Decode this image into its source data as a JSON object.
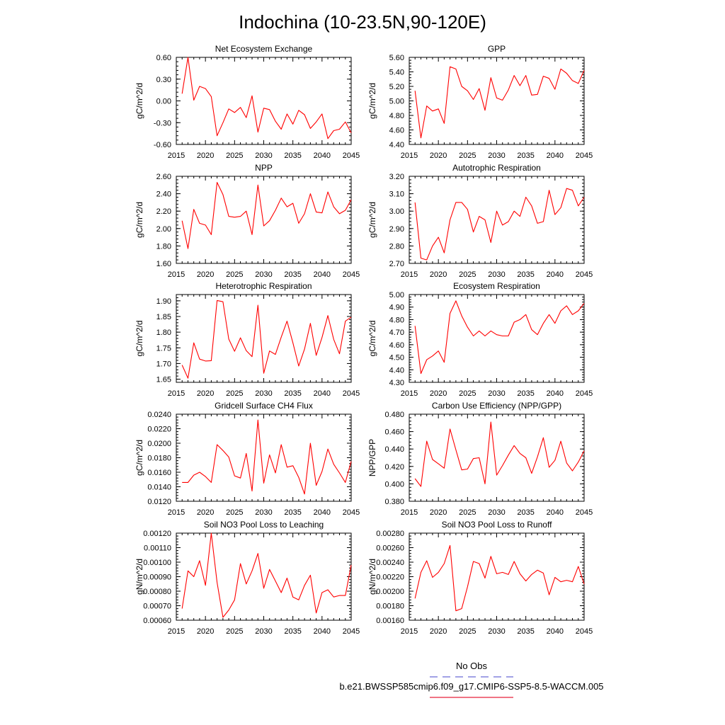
{
  "figure": {
    "title": "Indochina (10-23.5N,90-120E)",
    "legend": {
      "obs_label": "No Obs",
      "obs_color": "#6a6ad8",
      "model_label": "b.e21.BWSSP585cmip6.f09_g17.CMIP6-SSP5-8.5-WACCM.005",
      "model_color": "#e8223a"
    },
    "line_color": "#ff0000"
  },
  "chart_data": [
    {
      "type": "line",
      "title": "Net Ecosystem Exchange",
      "ylabel": "gC/m^2/d",
      "xlim": [
        2015,
        2045
      ],
      "xticks": [
        2015,
        2020,
        2025,
        2030,
        2035,
        2040,
        2045
      ],
      "ylim": [
        -0.6,
        0.6
      ],
      "yticks": [
        -0.6,
        -0.3,
        0.0,
        0.3,
        0.6
      ],
      "ytick_labels": [
        "-0.60",
        "-0.30",
        "0.00",
        "0.30",
        "0.60"
      ],
      "yminor": 0.06,
      "x": [
        2016,
        2017,
        2018,
        2019,
        2020,
        2021,
        2022,
        2023,
        2024,
        2025,
        2026,
        2027,
        2028,
        2029,
        2030,
        2031,
        2032,
        2033,
        2034,
        2035,
        2036,
        2037,
        2038,
        2039,
        2040,
        2041,
        2042,
        2043,
        2044,
        2045
      ],
      "values": [
        0.1,
        0.6,
        0.01,
        0.2,
        0.17,
        0.06,
        -0.48,
        -0.3,
        -0.11,
        -0.16,
        -0.09,
        -0.23,
        0.07,
        -0.43,
        -0.1,
        -0.12,
        -0.28,
        -0.39,
        -0.18,
        -0.32,
        -0.13,
        -0.19,
        -0.38,
        -0.29,
        -0.18,
        -0.52,
        -0.41,
        -0.39,
        -0.29,
        -0.44
      ]
    },
    {
      "type": "line",
      "title": "GPP",
      "ylabel": "gC/m^2/d",
      "xlim": [
        2015,
        2045
      ],
      "xticks": [
        2015,
        2020,
        2025,
        2030,
        2035,
        2040,
        2045
      ],
      "ylim": [
        4.4,
        5.6
      ],
      "yticks": [
        4.4,
        4.6,
        4.8,
        5.0,
        5.2,
        5.4,
        5.6
      ],
      "ytick_labels": [
        "4.40",
        "4.60",
        "4.80",
        "5.00",
        "5.20",
        "5.40",
        "5.60"
      ],
      "yminor": 0.04,
      "x": [
        2016,
        2017,
        2018,
        2019,
        2020,
        2021,
        2022,
        2023,
        2024,
        2025,
        2026,
        2027,
        2028,
        2029,
        2030,
        2031,
        2032,
        2033,
        2034,
        2035,
        2036,
        2037,
        2038,
        2039,
        2040,
        2041,
        2042,
        2043,
        2044,
        2045
      ],
      "values": [
        5.14,
        4.49,
        4.93,
        4.86,
        4.89,
        4.69,
        5.47,
        5.44,
        5.2,
        5.14,
        5.02,
        5.17,
        4.87,
        5.32,
        5.04,
        5.01,
        5.15,
        5.35,
        5.21,
        5.35,
        5.08,
        5.09,
        5.34,
        5.31,
        5.16,
        5.44,
        5.38,
        5.28,
        5.24,
        5.42
      ]
    },
    {
      "type": "line",
      "title": "NPP",
      "ylabel": "gC/m^2/d",
      "xlim": [
        2015,
        2045
      ],
      "xticks": [
        2015,
        2020,
        2025,
        2030,
        2035,
        2040,
        2045
      ],
      "ylim": [
        1.6,
        2.6
      ],
      "yticks": [
        1.6,
        1.8,
        2.0,
        2.2,
        2.4,
        2.6
      ],
      "ytick_labels": [
        "1.60",
        "1.80",
        "2.00",
        "2.20",
        "2.40",
        "2.60"
      ],
      "yminor": 0.04,
      "x": [
        2016,
        2017,
        2018,
        2019,
        2020,
        2021,
        2022,
        2023,
        2024,
        2025,
        2026,
        2027,
        2028,
        2029,
        2030,
        2031,
        2032,
        2033,
        2034,
        2035,
        2036,
        2037,
        2038,
        2039,
        2040,
        2041,
        2042,
        2043,
        2044,
        2045
      ],
      "values": [
        2.09,
        1.77,
        2.22,
        2.06,
        2.04,
        1.93,
        2.53,
        2.39,
        2.14,
        2.13,
        2.14,
        2.2,
        1.93,
        2.5,
        2.03,
        2.09,
        2.21,
        2.35,
        2.25,
        2.29,
        2.06,
        2.17,
        2.4,
        2.19,
        2.18,
        2.42,
        2.25,
        2.17,
        2.21,
        2.33
      ]
    },
    {
      "type": "line",
      "title": "Autotrophic Respiration",
      "ylabel": "gC/m^2/d",
      "xlim": [
        2015,
        2045
      ],
      "xticks": [
        2015,
        2020,
        2025,
        2030,
        2035,
        2040,
        2045
      ],
      "ylim": [
        2.7,
        3.2
      ],
      "yticks": [
        2.7,
        2.8,
        2.9,
        3.0,
        3.1,
        3.2
      ],
      "ytick_labels": [
        "2.70",
        "2.80",
        "2.90",
        "3.00",
        "3.10",
        "3.20"
      ],
      "yminor": 0.02,
      "x": [
        2016,
        2017,
        2018,
        2019,
        2020,
        2021,
        2022,
        2023,
        2024,
        2025,
        2026,
        2027,
        2028,
        2029,
        2030,
        2031,
        2032,
        2033,
        2034,
        2035,
        2036,
        2037,
        2038,
        2039,
        2040,
        2041,
        2042,
        2043,
        2044,
        2045
      ],
      "values": [
        3.05,
        2.73,
        2.72,
        2.8,
        2.85,
        2.76,
        2.95,
        3.05,
        3.05,
        3.01,
        2.88,
        2.97,
        2.95,
        2.82,
        3.0,
        2.92,
        2.94,
        3.0,
        2.97,
        3.08,
        3.03,
        2.93,
        2.94,
        3.12,
        2.98,
        3.02,
        3.13,
        3.12,
        3.03,
        3.08
      ]
    },
    {
      "type": "line",
      "title": "Heterotrophic Respiration",
      "ylabel": "gC/m^2/d",
      "xlim": [
        2015,
        2045
      ],
      "xticks": [
        2015,
        2020,
        2025,
        2030,
        2035,
        2040,
        2045
      ],
      "ylim": [
        1.64,
        1.92
      ],
      "yticks": [
        1.65,
        1.7,
        1.75,
        1.8,
        1.85,
        1.9
      ],
      "ytick_labels": [
        "1.65",
        "1.70",
        "1.75",
        "1.80",
        "1.85",
        "1.90"
      ],
      "yminor": 0.01,
      "x": [
        2016,
        2017,
        2018,
        2019,
        2020,
        2021,
        2022,
        2023,
        2024,
        2025,
        2026,
        2027,
        2028,
        2029,
        2030,
        2031,
        2032,
        2033,
        2034,
        2035,
        2036,
        2037,
        2038,
        2039,
        2040,
        2041,
        2042,
        2043,
        2044,
        2045
      ],
      "values": [
        1.695,
        1.653,
        1.766,
        1.714,
        1.708,
        1.709,
        1.901,
        1.897,
        1.778,
        1.739,
        1.782,
        1.741,
        1.722,
        1.886,
        1.669,
        1.74,
        1.729,
        1.784,
        1.835,
        1.766,
        1.692,
        1.746,
        1.828,
        1.726,
        1.783,
        1.853,
        1.777,
        1.731,
        1.835,
        1.848
      ]
    },
    {
      "type": "line",
      "title": "Ecosystem Respiration",
      "ylabel": "gC/m^2/d",
      "xlim": [
        2015,
        2045
      ],
      "xticks": [
        2015,
        2020,
        2025,
        2030,
        2035,
        2040,
        2045
      ],
      "ylim": [
        4.3,
        5.0
      ],
      "yticks": [
        4.3,
        4.4,
        4.5,
        4.6,
        4.7,
        4.8,
        4.9,
        5.0
      ],
      "ytick_labels": [
        "4.30",
        "4.40",
        "4.50",
        "4.60",
        "4.70",
        "4.80",
        "4.90",
        "5.00"
      ],
      "yminor": 0.02,
      "x": [
        2016,
        2017,
        2018,
        2019,
        2020,
        2021,
        2022,
        2023,
        2024,
        2025,
        2026,
        2027,
        2028,
        2029,
        2030,
        2031,
        2032,
        2033,
        2034,
        2035,
        2036,
        2037,
        2038,
        2039,
        2040,
        2041,
        2042,
        2043,
        2044,
        2045
      ],
      "values": [
        4.75,
        4.37,
        4.48,
        4.51,
        4.55,
        4.46,
        4.85,
        4.95,
        4.83,
        4.74,
        4.67,
        4.71,
        4.67,
        4.71,
        4.68,
        4.67,
        4.67,
        4.78,
        4.8,
        4.84,
        4.72,
        4.68,
        4.77,
        4.84,
        4.77,
        4.87,
        4.91,
        4.84,
        4.87,
        4.93
      ]
    },
    {
      "type": "line",
      "title": "Gridcell Surface CH4 Flux",
      "ylabel": "gC/m^2/d",
      "xlim": [
        2015,
        2045
      ],
      "xticks": [
        2015,
        2020,
        2025,
        2030,
        2035,
        2040,
        2045
      ],
      "ylim": [
        0.012,
        0.024
      ],
      "yticks": [
        0.012,
        0.014,
        0.016,
        0.018,
        0.02,
        0.022,
        0.024
      ],
      "ytick_labels": [
        "0.0120",
        "0.0140",
        "0.0160",
        "0.0180",
        "0.0200",
        "0.0220",
        "0.0240"
      ],
      "yminor": 0.0004,
      "x": [
        2016,
        2017,
        2018,
        2019,
        2020,
        2021,
        2022,
        2023,
        2024,
        2025,
        2026,
        2027,
        2028,
        2029,
        2030,
        2031,
        2032,
        2033,
        2034,
        2035,
        2036,
        2037,
        2038,
        2039,
        2040,
        2041,
        2042,
        2043,
        2044,
        2045
      ],
      "values": [
        0.0146,
        0.0146,
        0.0156,
        0.016,
        0.0154,
        0.0146,
        0.0198,
        0.019,
        0.0181,
        0.0155,
        0.0152,
        0.0186,
        0.0134,
        0.0232,
        0.0145,
        0.0184,
        0.0159,
        0.0198,
        0.0167,
        0.0169,
        0.0153,
        0.013,
        0.02,
        0.0142,
        0.0161,
        0.0192,
        0.0171,
        0.0159,
        0.0146,
        0.0175
      ]
    },
    {
      "type": "line",
      "title": "Carbon Use Efficiency (NPP/GPP)",
      "ylabel": "NPP/GPP",
      "xlim": [
        2015,
        2045
      ],
      "xticks": [
        2015,
        2020,
        2025,
        2030,
        2035,
        2040,
        2045
      ],
      "ylim": [
        0.38,
        0.48
      ],
      "yticks": [
        0.38,
        0.4,
        0.42,
        0.44,
        0.46,
        0.48
      ],
      "ytick_labels": [
        "0.380",
        "0.400",
        "0.420",
        "0.440",
        "0.460",
        "0.480"
      ],
      "yminor": 0.004,
      "x": [
        2016,
        2017,
        2018,
        2019,
        2020,
        2021,
        2022,
        2023,
        2024,
        2025,
        2026,
        2027,
        2028,
        2029,
        2030,
        2031,
        2032,
        2033,
        2034,
        2035,
        2036,
        2037,
        2038,
        2039,
        2040,
        2041,
        2042,
        2043,
        2044,
        2045
      ],
      "values": [
        0.406,
        0.397,
        0.449,
        0.428,
        0.423,
        0.418,
        0.463,
        0.439,
        0.416,
        0.417,
        0.429,
        0.43,
        0.4,
        0.471,
        0.41,
        0.421,
        0.433,
        0.444,
        0.435,
        0.43,
        0.412,
        0.431,
        0.453,
        0.419,
        0.427,
        0.449,
        0.424,
        0.415,
        0.425,
        0.438
      ]
    },
    {
      "type": "line",
      "title": "Soil NO3 Pool Loss to Leaching",
      "ylabel": "gN/m^2/d",
      "xlim": [
        2015,
        2045
      ],
      "xticks": [
        2015,
        2020,
        2025,
        2030,
        2035,
        2040,
        2045
      ],
      "ylim": [
        0.0006,
        0.0012
      ],
      "yticks": [
        0.0006,
        0.0007,
        0.0008,
        0.0009,
        0.001,
        0.0011,
        0.0012
      ],
      "ytick_labels": [
        "0.00060",
        "0.00070",
        "0.00080",
        "0.00090",
        "0.00100",
        "0.00110",
        "0.00120"
      ],
      "yminor": 2e-05,
      "x": [
        2016,
        2017,
        2018,
        2019,
        2020,
        2021,
        2022,
        2023,
        2024,
        2025,
        2026,
        2027,
        2028,
        2029,
        2030,
        2031,
        2032,
        2033,
        2034,
        2035,
        2036,
        2037,
        2038,
        2039,
        2040,
        2041,
        2042,
        2043,
        2044,
        2045
      ],
      "values": [
        0.00068,
        0.00094,
        0.0009,
        0.00101,
        0.00084,
        0.0012,
        0.00086,
        0.00062,
        0.00067,
        0.00074,
        0.00099,
        0.00085,
        0.00094,
        0.00106,
        0.00082,
        0.00095,
        0.00087,
        0.00079,
        0.00089,
        0.00076,
        0.00074,
        0.00084,
        0.00091,
        0.00065,
        0.00079,
        0.00081,
        0.00076,
        0.00077,
        0.00077,
        0.00098
      ]
    },
    {
      "type": "line",
      "title": "Soil NO3 Pool Loss to Runoff",
      "ylabel": "gN/m^2/d",
      "xlim": [
        2015,
        2045
      ],
      "xticks": [
        2015,
        2020,
        2025,
        2030,
        2035,
        2040,
        2045
      ],
      "ylim": [
        0.0016,
        0.0028
      ],
      "yticks": [
        0.0016,
        0.0018,
        0.002,
        0.0022,
        0.0024,
        0.0026,
        0.0028
      ],
      "ytick_labels": [
        "0.00160",
        "0.00180",
        "0.00200",
        "0.00220",
        "0.00240",
        "0.00260",
        "0.00280"
      ],
      "yminor": 4e-05,
      "x": [
        2016,
        2017,
        2018,
        2019,
        2020,
        2021,
        2022,
        2023,
        2024,
        2025,
        2026,
        2027,
        2028,
        2029,
        2030,
        2031,
        2032,
        2033,
        2034,
        2035,
        2036,
        2037,
        2038,
        2039,
        2040,
        2041,
        2042,
        2043,
        2044,
        2045
      ],
      "values": [
        0.0019,
        0.00226,
        0.00242,
        0.00219,
        0.00226,
        0.00238,
        0.00263,
        0.00173,
        0.00176,
        0.00206,
        0.00241,
        0.00238,
        0.00218,
        0.00248,
        0.00224,
        0.00226,
        0.00223,
        0.00241,
        0.00224,
        0.00214,
        0.00223,
        0.00229,
        0.00225,
        0.00195,
        0.00219,
        0.00213,
        0.00215,
        0.00213,
        0.00234,
        0.0021
      ]
    }
  ]
}
